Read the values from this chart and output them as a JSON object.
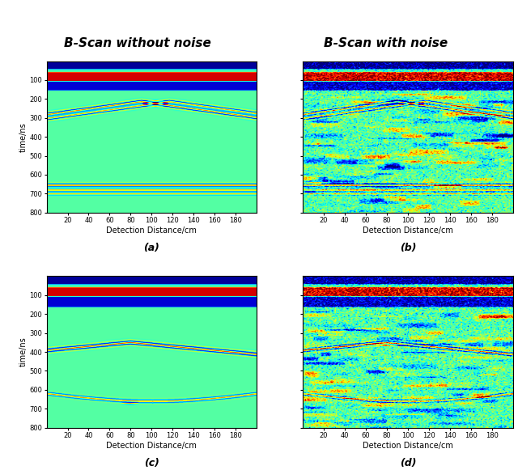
{
  "title_left": "B-Scan without noise",
  "title_right": "B-Scan with noise",
  "xlabel": "Detection Distance/cm",
  "ylabel": "time/ns",
  "xlim": [
    0,
    200
  ],
  "ylim": [
    0,
    800
  ],
  "xticks": [
    20,
    40,
    60,
    80,
    100,
    120,
    140,
    160,
    180
  ],
  "yticks": [
    100,
    200,
    300,
    400,
    500,
    600,
    700,
    800
  ],
  "label_a": "(a)",
  "label_b": "(b)",
  "label_c": "(c)",
  "label_d": "(d)",
  "fig_width": 6.4,
  "fig_height": 5.81,
  "title_fontsize": 11,
  "label_fontsize": 7,
  "tick_fontsize": 6,
  "sublabel_fontsize": 9,
  "background_color": "#ffffff"
}
